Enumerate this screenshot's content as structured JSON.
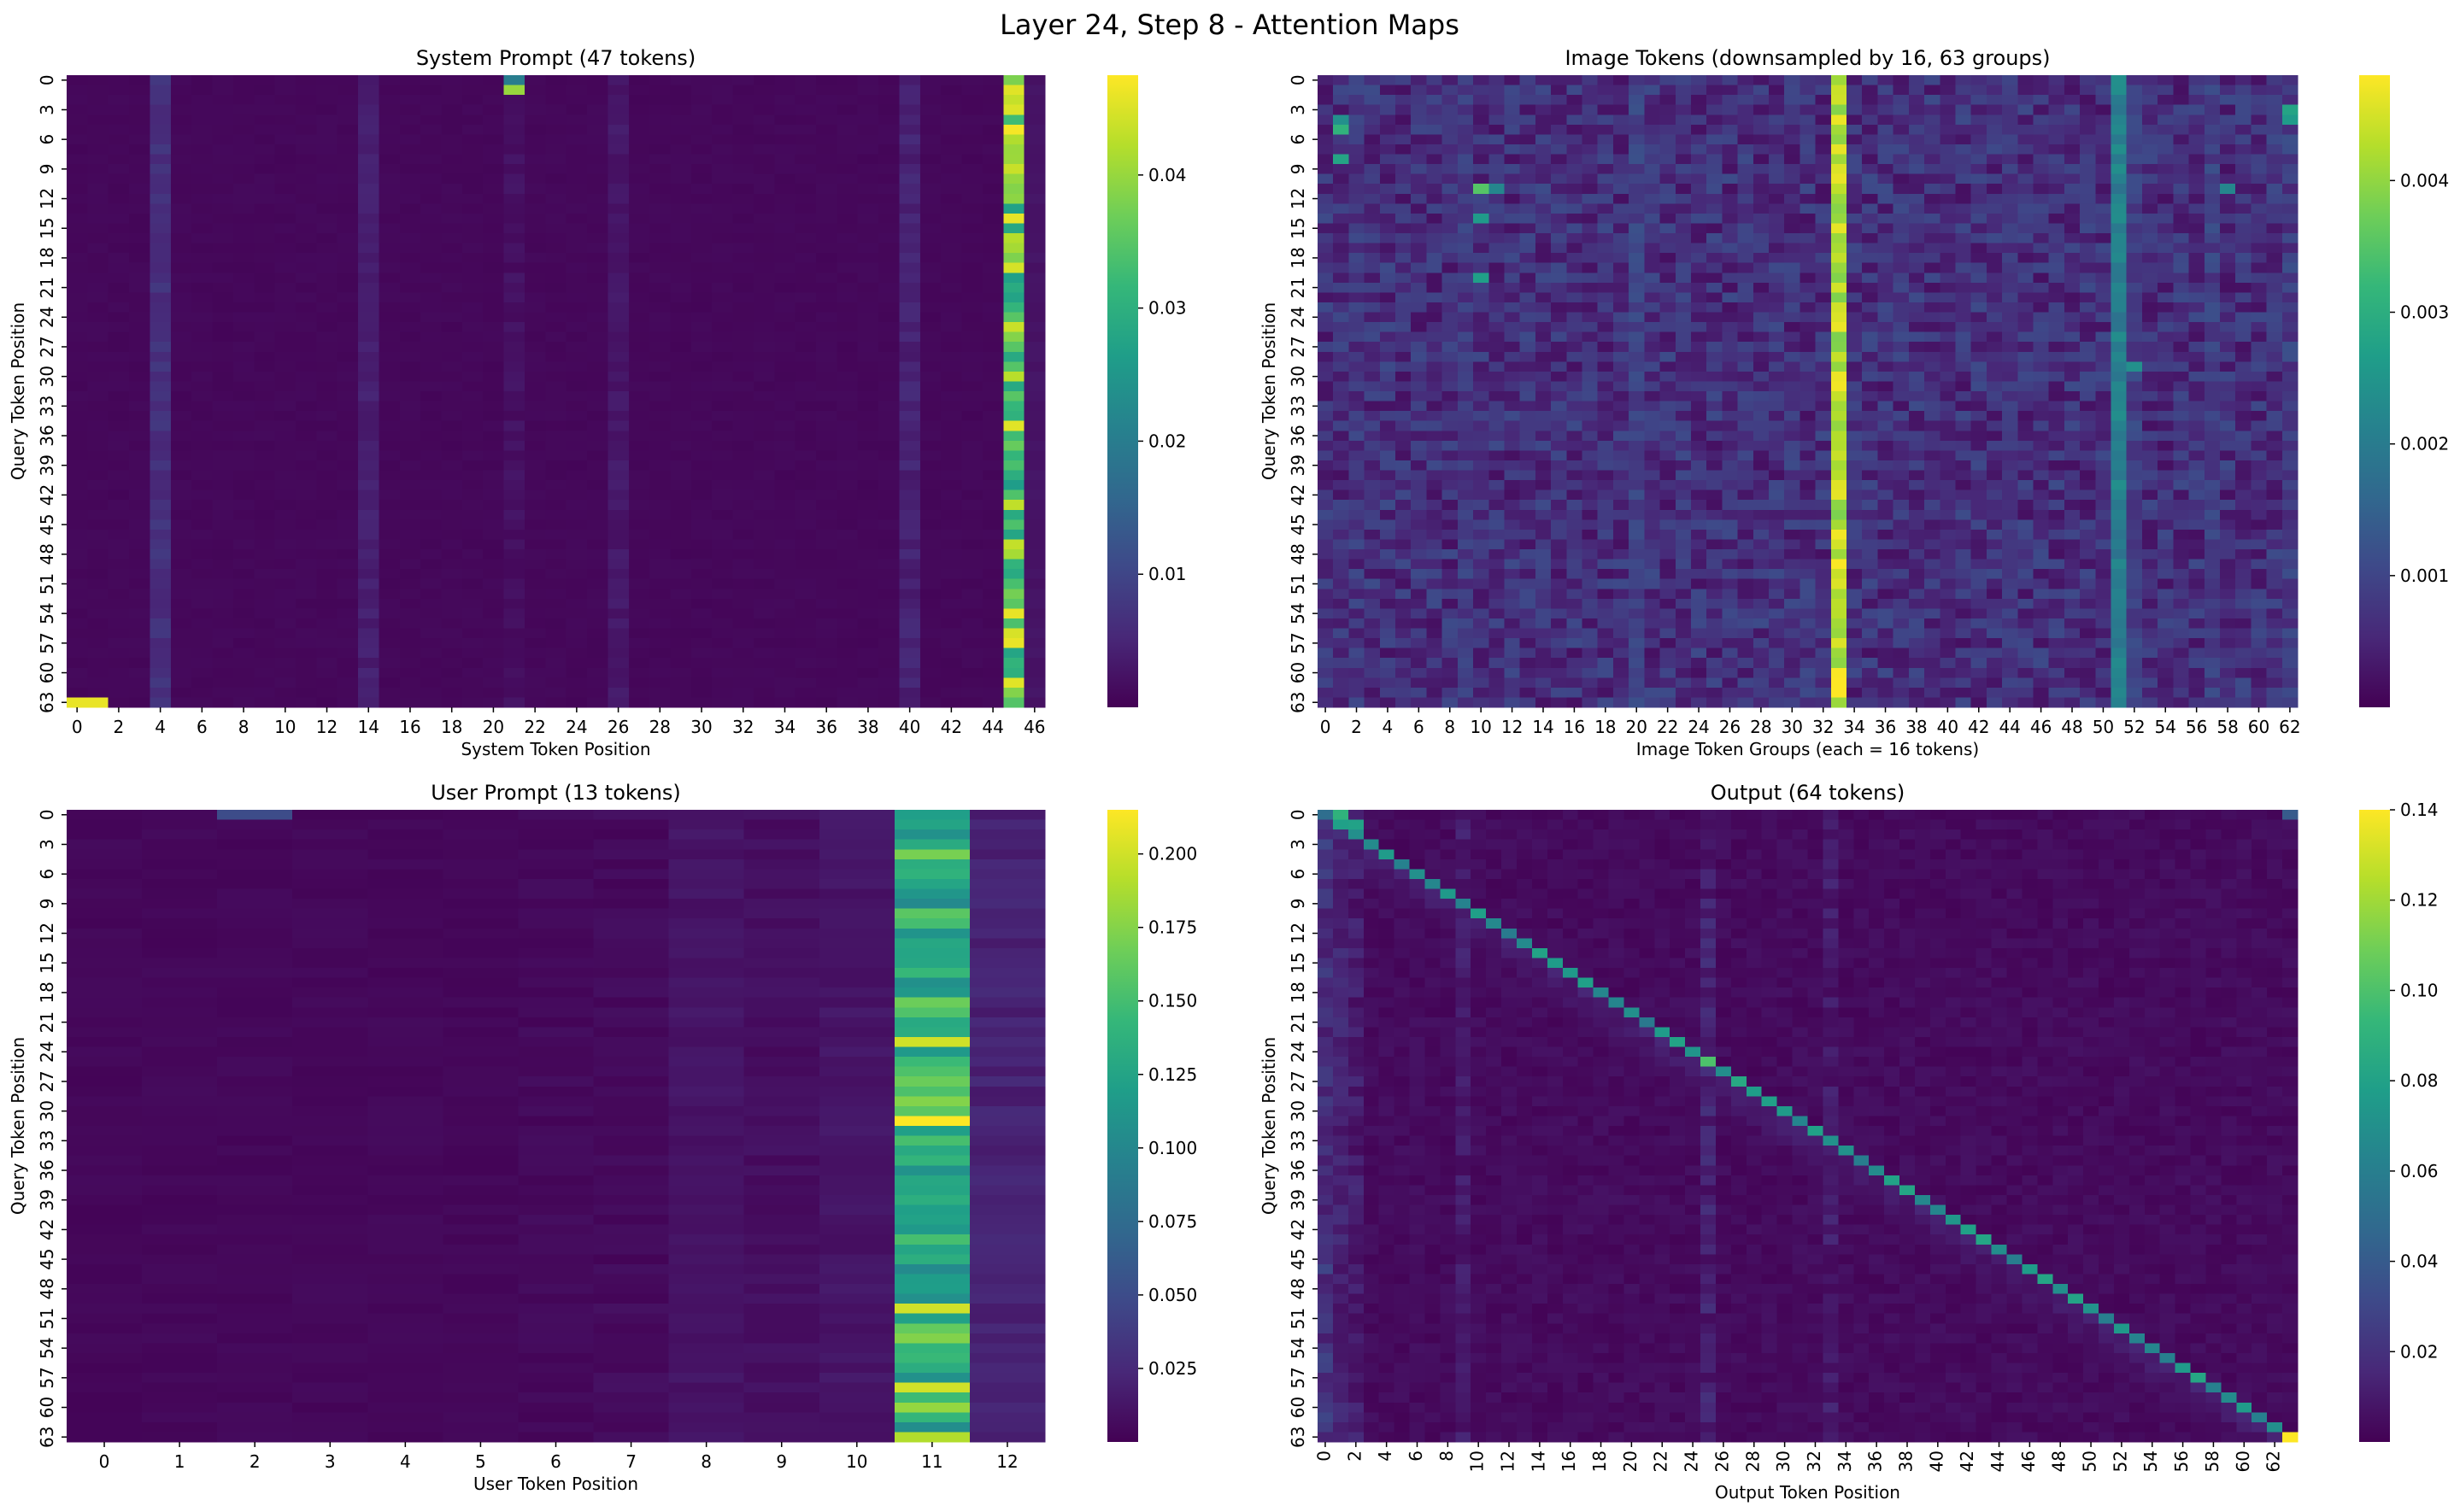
{
  "figure": {
    "title": "Layer 24, Step 8 - Attention Maps"
  },
  "colormap": {
    "name": "viridis",
    "stops": [
      "#440154",
      "#482878",
      "#3e4989",
      "#31688e",
      "#26828e",
      "#1f9e89",
      "#35b779",
      "#6ece58",
      "#b5de2b",
      "#fde725"
    ]
  },
  "chart_data": [
    {
      "type": "heatmap",
      "id": "system",
      "title": "System Prompt (47 tokens)",
      "xlabel": "System Token Position",
      "ylabel": "Query Token Position",
      "n_cols": 47,
      "n_rows": 64,
      "x_ticks": [
        0,
        2,
        4,
        6,
        8,
        10,
        12,
        14,
        16,
        18,
        20,
        22,
        24,
        26,
        28,
        30,
        32,
        34,
        36,
        38,
        40,
        42,
        44,
        46
      ],
      "y_ticks": [
        0,
        3,
        6,
        9,
        12,
        15,
        18,
        21,
        24,
        27,
        30,
        33,
        36,
        39,
        42,
        45,
        48,
        51,
        54,
        57,
        60,
        63
      ],
      "x_tick_rotation": 0,
      "vmin": 0.0,
      "vmax": 0.0475,
      "colorbar_ticks": [
        0.01,
        0.02,
        0.03,
        0.04
      ],
      "colorbar_tick_labels": [
        "0.01",
        "0.02",
        "0.03",
        "0.04"
      ],
      "pattern": {
        "base": 0.0006,
        "noise": 0.0006,
        "seed": 11,
        "columns": [
          {
            "col": 45,
            "min": 0.026,
            "max": 0.046
          },
          {
            "col": 4,
            "min": 0.005,
            "max": 0.008
          },
          {
            "col": 14,
            "min": 0.003,
            "max": 0.005
          },
          {
            "col": 40,
            "min": 0.003,
            "max": 0.006
          },
          {
            "col": 26,
            "min": 0.002,
            "max": 0.004
          },
          {
            "col": 46,
            "min": 0.002,
            "max": 0.003
          },
          {
            "col": 21,
            "min": 0.001,
            "max": 0.003
          }
        ],
        "cells": [
          {
            "row": 0,
            "col": 21,
            "value": 0.02
          },
          {
            "row": 1,
            "col": 21,
            "value": 0.04
          },
          {
            "row": 63,
            "col": 0,
            "value": 0.046
          },
          {
            "row": 63,
            "col": 1,
            "value": 0.046
          },
          {
            "row": 5,
            "col": 45,
            "value": 0.047
          },
          {
            "row": 54,
            "col": 45,
            "value": 0.046
          },
          {
            "row": 57,
            "col": 45,
            "value": 0.046
          }
        ]
      }
    },
    {
      "type": "heatmap",
      "id": "image",
      "title": "Image Tokens (downsampled by 16, 63 groups)",
      "xlabel": "Image Token Groups (each = 16 tokens)",
      "ylabel": "Query Token Position",
      "n_cols": 63,
      "n_rows": 64,
      "x_ticks": [
        0,
        2,
        4,
        6,
        8,
        10,
        12,
        14,
        16,
        18,
        20,
        22,
        24,
        26,
        28,
        30,
        32,
        34,
        36,
        38,
        40,
        42,
        44,
        46,
        48,
        50,
        52,
        54,
        56,
        58,
        60,
        62
      ],
      "y_ticks": [
        0,
        3,
        6,
        9,
        12,
        15,
        18,
        21,
        24,
        27,
        30,
        33,
        36,
        39,
        42,
        45,
        48,
        51,
        54,
        57,
        60,
        63
      ],
      "x_tick_rotation": 0,
      "vmin": 0.0,
      "vmax": 0.0048,
      "colorbar_ticks": [
        0.001,
        0.002,
        0.003,
        0.004
      ],
      "colorbar_tick_labels": [
        "0.001",
        "0.002",
        "0.003",
        "0.004"
      ],
      "pattern": {
        "base": 0.0002,
        "noise": 0.0009,
        "seed": 23,
        "columns": [
          {
            "col": 33,
            "min": 0.0038,
            "max": 0.0048
          },
          {
            "col": 51,
            "min": 0.0018,
            "max": 0.0024
          },
          {
            "col": 52,
            "min": 0.0006,
            "max": 0.0012
          },
          {
            "col": 20,
            "min": 0.0007,
            "max": 0.0012
          },
          {
            "col": 9,
            "min": 0.0005,
            "max": 0.0011
          },
          {
            "col": 57,
            "min": 0.0006,
            "max": 0.0012
          },
          {
            "col": 44,
            "min": 0.0005,
            "max": 0.001
          },
          {
            "col": 62,
            "min": 0.0005,
            "max": 0.0012
          },
          {
            "col": 2,
            "min": 0.0003,
            "max": 0.0011
          },
          {
            "col": 40,
            "min": 0.0003,
            "max": 0.0008
          }
        ],
        "cells": [
          {
            "row": 4,
            "col": 1,
            "value": 0.0024
          },
          {
            "row": 5,
            "col": 1,
            "value": 0.0031
          },
          {
            "row": 8,
            "col": 1,
            "value": 0.0028
          },
          {
            "row": 11,
            "col": 10,
            "value": 0.0035
          },
          {
            "row": 11,
            "col": 11,
            "value": 0.0022
          },
          {
            "row": 14,
            "col": 10,
            "value": 0.0026
          },
          {
            "row": 20,
            "col": 10,
            "value": 0.0027
          },
          {
            "row": 11,
            "col": 58,
            "value": 0.0022
          },
          {
            "row": 3,
            "col": 62,
            "value": 0.0028
          },
          {
            "row": 4,
            "col": 62,
            "value": 0.0026
          },
          {
            "row": 29,
            "col": 52,
            "value": 0.0024
          },
          {
            "row": 62,
            "col": 33,
            "value": 0.0048
          }
        ]
      }
    },
    {
      "type": "heatmap",
      "id": "user",
      "title": "User Prompt (13 tokens)",
      "xlabel": "User Token Position",
      "ylabel": "Query Token Position",
      "n_cols": 13,
      "n_rows": 64,
      "x_ticks": [
        0,
        1,
        2,
        3,
        4,
        5,
        6,
        7,
        8,
        9,
        10,
        11,
        12
      ],
      "y_ticks": [
        0,
        3,
        6,
        9,
        12,
        15,
        18,
        21,
        24,
        27,
        30,
        33,
        36,
        39,
        42,
        45,
        48,
        51,
        54,
        57,
        60,
        63
      ],
      "x_tick_rotation": 0,
      "vmin": 0.0,
      "vmax": 0.215,
      "colorbar_ticks": [
        0.025,
        0.05,
        0.075,
        0.1,
        0.125,
        0.15,
        0.175,
        0.2
      ],
      "colorbar_tick_labels": [
        "0.025",
        "0.050",
        "0.075",
        "0.100",
        "0.125",
        "0.150",
        "0.175",
        "0.200"
      ],
      "pattern": {
        "base": 0.002,
        "noise": 0.004,
        "seed": 37,
        "columns": [
          {
            "col": 11,
            "min": 0.1,
            "max": 0.175
          },
          {
            "col": 12,
            "min": 0.014,
            "max": 0.026
          },
          {
            "col": 10,
            "min": 0.008,
            "max": 0.016
          },
          {
            "col": 8,
            "min": 0.008,
            "max": 0.016
          },
          {
            "col": 9,
            "min": 0.004,
            "max": 0.012
          },
          {
            "col": 7,
            "min": 0.002,
            "max": 0.01
          },
          {
            "col": 6,
            "min": 0.002,
            "max": 0.008
          }
        ],
        "cells": [
          {
            "row": 0,
            "col": 2,
            "value": 0.05
          },
          {
            "row": 0,
            "col": 11,
            "value": 0.12
          },
          {
            "row": 23,
            "col": 11,
            "value": 0.2
          },
          {
            "row": 31,
            "col": 11,
            "value": 0.215
          },
          {
            "row": 50,
            "col": 11,
            "value": 0.2
          },
          {
            "row": 58,
            "col": 11,
            "value": 0.2
          },
          {
            "row": 60,
            "col": 11,
            "value": 0.18
          },
          {
            "row": 63,
            "col": 11,
            "value": 0.19
          }
        ]
      }
    },
    {
      "type": "heatmap",
      "id": "output",
      "title": "Output (64 tokens)",
      "xlabel": "Output Token Position",
      "ylabel": "Query Token Position",
      "n_cols": 64,
      "n_rows": 64,
      "x_ticks": [
        0,
        2,
        4,
        6,
        8,
        10,
        12,
        14,
        16,
        18,
        20,
        22,
        24,
        26,
        28,
        30,
        32,
        34,
        36,
        38,
        40,
        42,
        44,
        46,
        48,
        50,
        52,
        54,
        56,
        58,
        60,
        62
      ],
      "y_ticks": [
        0,
        3,
        6,
        9,
        12,
        15,
        18,
        21,
        24,
        27,
        30,
        33,
        36,
        39,
        42,
        45,
        48,
        51,
        54,
        57,
        60,
        63
      ],
      "x_tick_rotation": -90,
      "vmin": 0.0,
      "vmax": 0.14,
      "colorbar_ticks": [
        0.02,
        0.04,
        0.06,
        0.08,
        0.1,
        0.12,
        0.14
      ],
      "colorbar_tick_labels": [
        "0.02",
        "0.04",
        "0.06",
        "0.08",
        "0.10",
        "0.12",
        "0.14"
      ],
      "pattern": {
        "base": 0.001,
        "noise": 0.006,
        "seed": 53,
        "diagonal": {
          "peak": 0.07,
          "falloff": 0.011,
          "spread": 5
        },
        "columns": [
          {
            "col": 0,
            "min": 0.01,
            "max": 0.03
          },
          {
            "col": 1,
            "min": 0.006,
            "max": 0.02
          },
          {
            "col": 2,
            "min": 0.004,
            "max": 0.018
          },
          {
            "col": 25,
            "min": 0.004,
            "max": 0.02
          },
          {
            "col": 33,
            "min": 0.003,
            "max": 0.016
          },
          {
            "col": 9,
            "min": 0.004,
            "max": 0.016
          }
        ],
        "cells": [
          {
            "row": 0,
            "col": 0,
            "value": 0.05
          },
          {
            "row": 0,
            "col": 1,
            "value": 0.09
          },
          {
            "row": 1,
            "col": 2,
            "value": 0.08
          },
          {
            "row": 25,
            "col": 25,
            "value": 0.1
          },
          {
            "row": 63,
            "col": 63,
            "value": 0.14
          },
          {
            "row": 0,
            "col": 63,
            "value": 0.04
          }
        ]
      }
    }
  ]
}
